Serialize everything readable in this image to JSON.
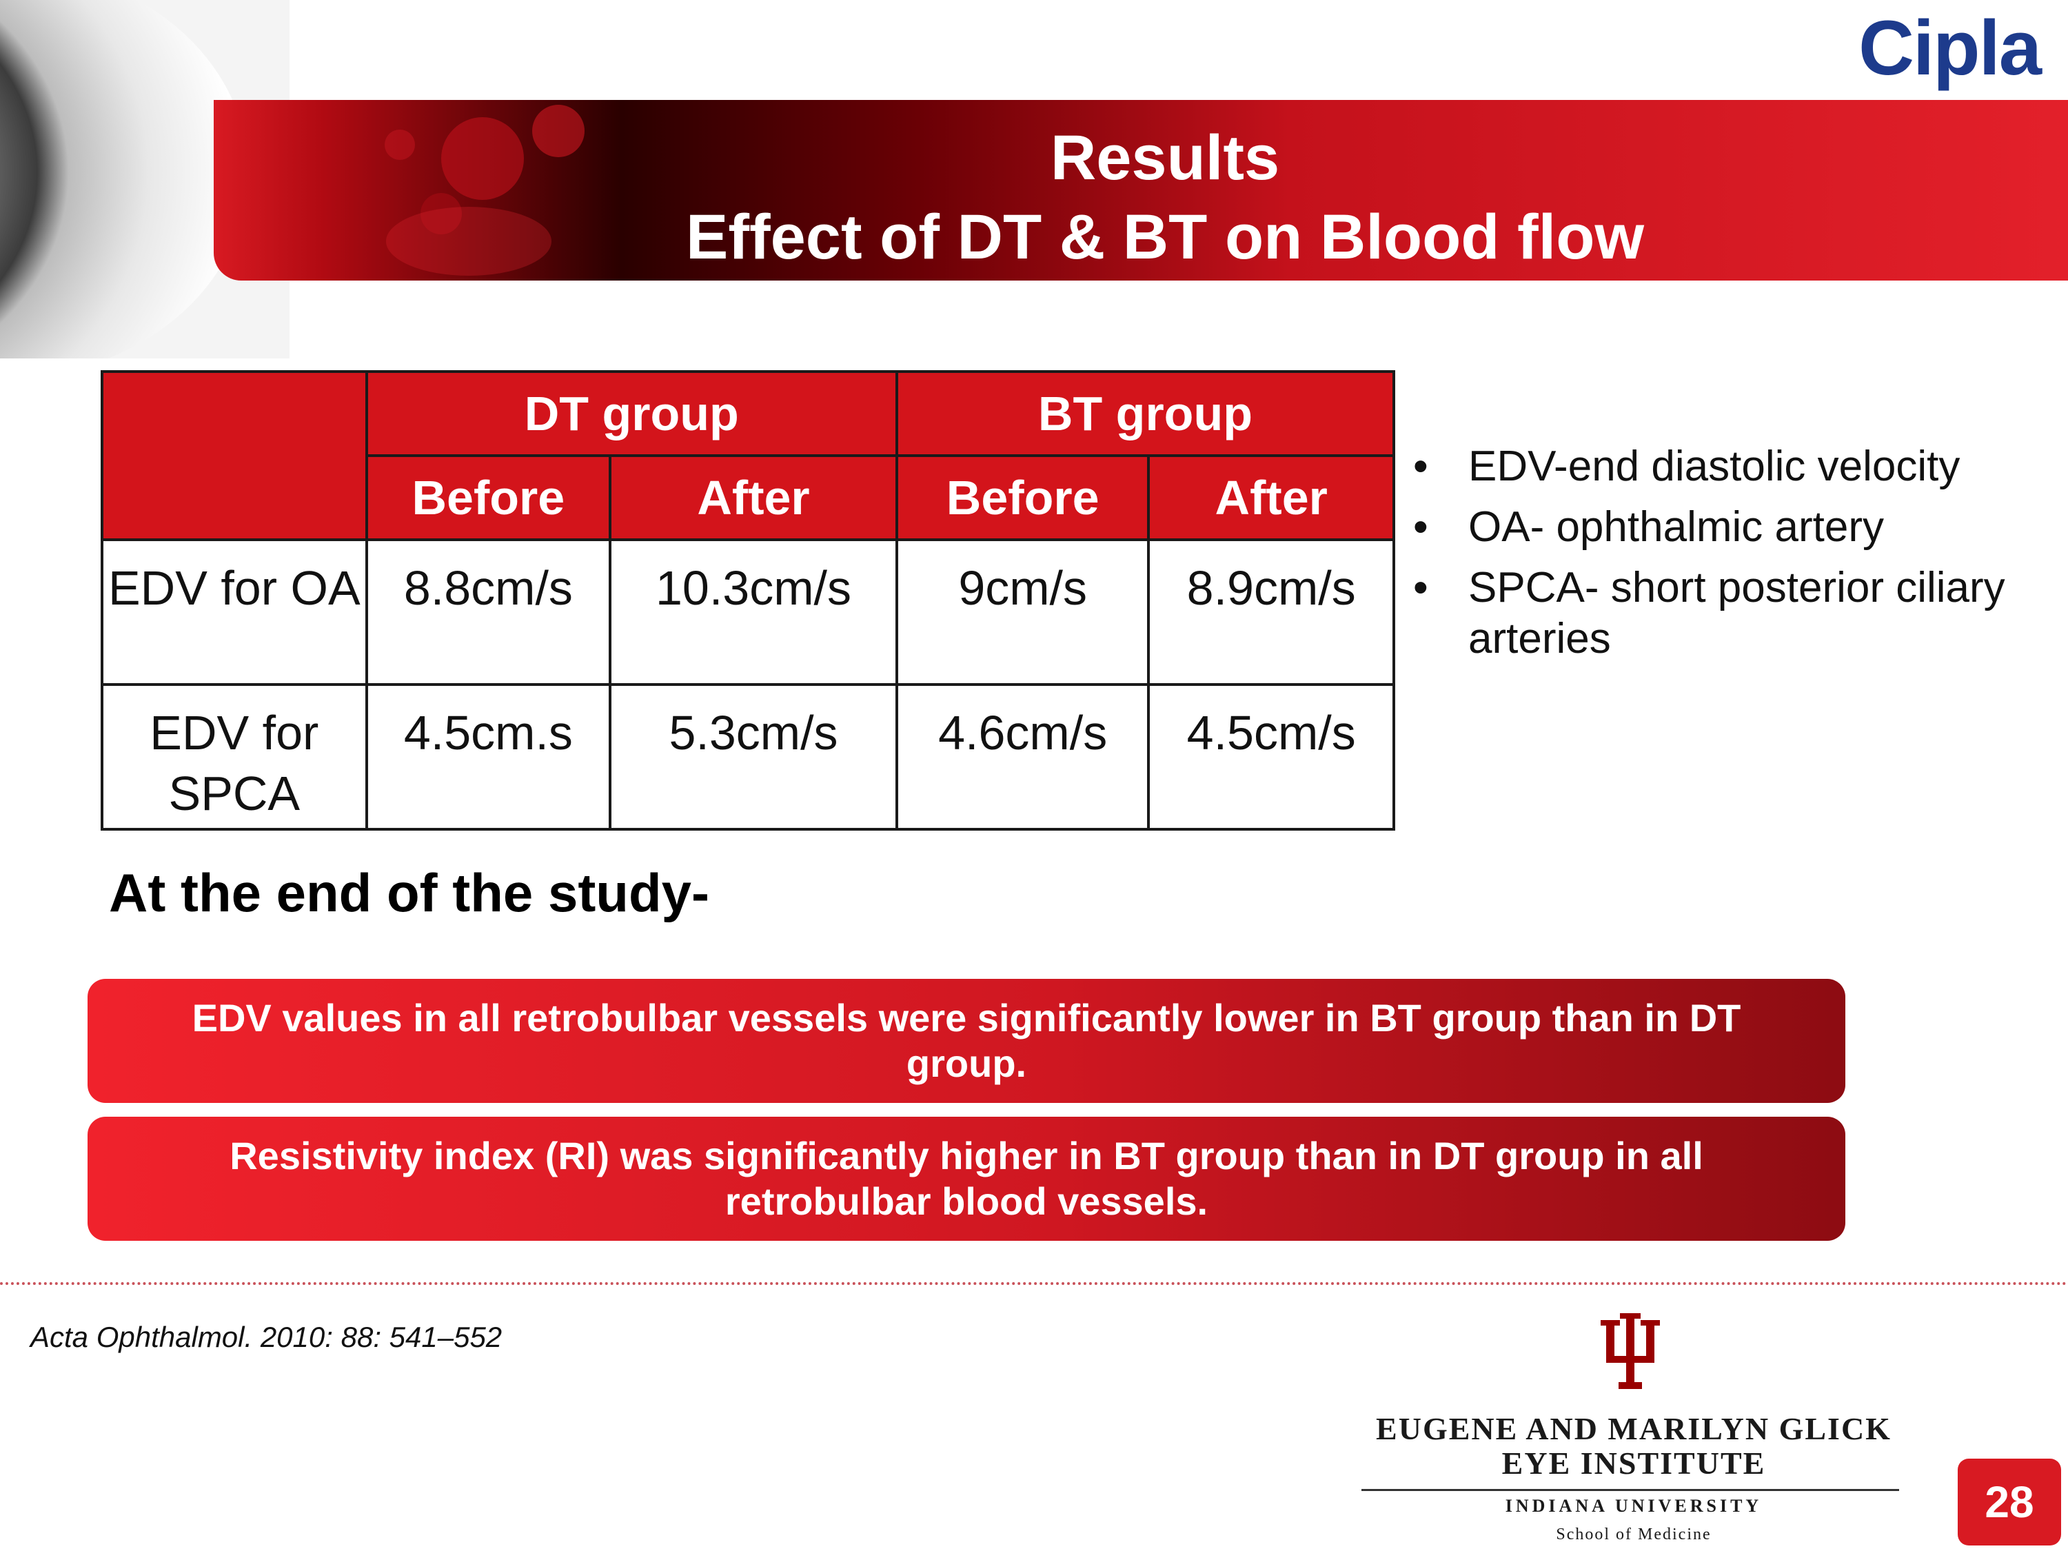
{
  "header": {
    "title_line1": "Results",
    "title_line2": "Effect of DT & BT on Blood flow",
    "logo": "Cipla"
  },
  "table": {
    "group_headers": [
      "DT group",
      "BT group"
    ],
    "sub_headers": [
      "Before",
      "After",
      "Before",
      "After"
    ],
    "rows": [
      {
        "label": "EDV for OA",
        "values": [
          "8.8cm/s",
          "10.3cm/s",
          "9cm/s",
          "8.9cm/s"
        ]
      },
      {
        "label": "EDV for SPCA",
        "values": [
          "4.5cm.s",
          "5.3cm/s",
          "4.6cm/s",
          "4.5cm/s"
        ]
      }
    ]
  },
  "bullets": [
    " EDV-end diastolic velocity",
    "OA- ophthalmic artery",
    "SPCA- short posterior ciliary arteries"
  ],
  "study_heading": "At the end of the study-",
  "findings": [
    "EDV values in all retrobulbar vessels were significantly lower in BT group than in DT group.",
    "Resistivity index (RI) was significantly higher in BT group than in DT group in all retrobulbar blood vessels."
  ],
  "citation": "Acta Ophthalmol. 2010: 88: 541–552",
  "institution": {
    "name_line1": "EUGENE AND MARILYN GLICK",
    "name_line2": "EYE INSTITUTE",
    "university": "INDIANA UNIVERSITY",
    "school": "School of Medicine"
  },
  "page_number": "28",
  "colors": {
    "accent_red": "#d3141b",
    "logo_blue": "#1d3b8c"
  },
  "icons": {
    "decor": "eye-image",
    "banner": "blood-cells-image",
    "emblem": "iu-trident-icon"
  }
}
